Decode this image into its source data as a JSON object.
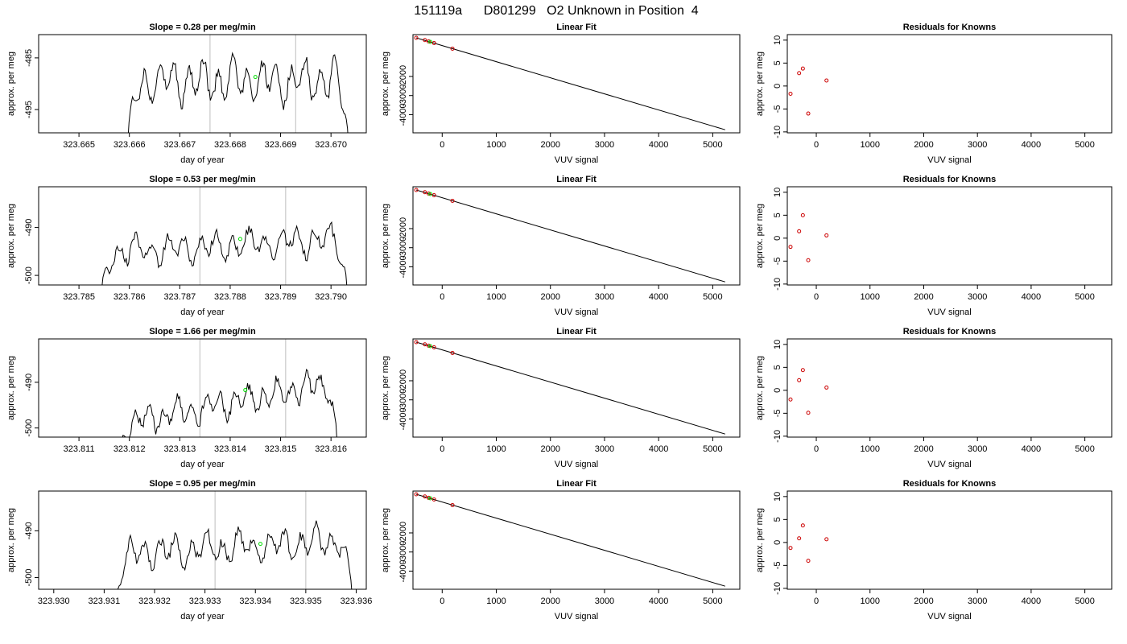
{
  "title": "151119a      D801299   O2 Unknown in Position  4",
  "colors": {
    "trace": "#000000",
    "vline": "#c8c8c8",
    "unknown": "#00dd00",
    "known": "#cc0000",
    "fitline": "#000000"
  },
  "chart_data": [
    {
      "title": "Slope =  0.28  per meg/min",
      "xlabel": "day of year",
      "ylabel": "approx. per meg",
      "left": {
        "type": "line",
        "xlim": [
          323.6642,
          323.6707
        ],
        "ylim": [
          -499.5,
          -480.5
        ],
        "xticks": [
          323.665,
          323.666,
          323.667,
          323.668,
          323.669,
          323.67
        ],
        "xtick_labels": [
          "323.665",
          "323.666",
          "323.667",
          "323.668",
          "323.669",
          "323.670"
        ],
        "yticks": [
          -485,
          -495
        ],
        "ytick_labels": [
          "-485",
          "-495"
        ],
        "vlines": [
          323.6676,
          323.6693
        ],
        "unknown_point": [
          323.6685,
          -488.7
        ],
        "trace": {
          "x0": 323.66597,
          "x1": 323.67035,
          "start": -501,
          "base": -489.5,
          "trend": 0.0,
          "amp": 3.0,
          "amp2": 1.6,
          "phase": 0.4,
          "end": -502
        }
      },
      "fit": {
        "title": "Linear Fit",
        "xlabel": "VUV signal",
        "ylabel": "approx. per meg",
        "xlim": [
          -540,
          5500
        ],
        "ylim": [
          -4950,
          190
        ],
        "xticks": [
          0,
          1000,
          2000,
          3000,
          4000,
          5000
        ],
        "xtick_labels": [
          "0",
          "1000",
          "2000",
          "3000",
          "4000",
          "5000"
        ],
        "yticks": [
          -2000,
          -3000,
          -4000
        ],
        "ytick_labels": [
          "-2000",
          "-3000",
          "-4000"
        ],
        "line": [
          [
            -480,
            20
          ],
          [
            5230,
            -4790
          ]
        ],
        "knowns": [
          [
            -480,
            20
          ],
          [
            -320,
            -95
          ],
          [
            -250,
            -165
          ],
          [
            -150,
            -250
          ],
          [
            190,
            -545
          ]
        ],
        "unknowns": [
          [
            -220,
            -190
          ]
        ]
      },
      "residuals": {
        "title": "Residuals for Knowns",
        "xlabel": "VUV signal",
        "ylabel": "approx. per meg",
        "xlim": [
          -540,
          5500
        ],
        "ylim": [
          -10.2,
          11.2
        ],
        "xticks": [
          0,
          1000,
          2000,
          3000,
          4000,
          5000
        ],
        "xtick_labels": [
          "0",
          "1000",
          "2000",
          "3000",
          "4000",
          "5000"
        ],
        "yticks": [
          -10,
          -5,
          0,
          5,
          10
        ],
        "ytick_labels": [
          "-10",
          "-5",
          "0",
          "5",
          "10"
        ],
        "points": [
          [
            -480,
            -1.7
          ],
          [
            -320,
            2.8
          ],
          [
            -250,
            3.8
          ],
          [
            -150,
            -6.0
          ],
          [
            190,
            1.2
          ]
        ]
      }
    },
    {
      "title": "Slope =  0.53  per meg/min",
      "xlabel": "day of year",
      "ylabel": "approx. per meg",
      "left": {
        "type": "line",
        "xlim": [
          323.7842,
          323.7907
        ],
        "ylim": [
          -502,
          -481.5
        ],
        "xticks": [
          323.785,
          323.786,
          323.787,
          323.788,
          323.789,
          323.79
        ],
        "xtick_labels": [
          "323.785",
          "323.786",
          "323.787",
          "323.788",
          "323.789",
          "323.790"
        ],
        "yticks": [
          -490,
          -500
        ],
        "ytick_labels": [
          "-490",
          "-500"
        ],
        "vlines": [
          323.7874,
          323.7891
        ],
        "unknown_point": [
          323.7882,
          -492.4
        ],
        "trace": {
          "x0": 323.78545,
          "x1": 323.79032,
          "start": -503,
          "base": -493.8,
          "trend": 1.6,
          "amp": 2.2,
          "amp2": 1.2,
          "phase": 1.1,
          "end": -503
        }
      },
      "fit": {
        "title": "Linear Fit",
        "xlabel": "VUV signal",
        "ylabel": "approx. per meg",
        "xlim": [
          -540,
          5500
        ],
        "ylim": [
          -4950,
          190
        ],
        "xticks": [
          0,
          1000,
          2000,
          3000,
          4000,
          5000
        ],
        "xtick_labels": [
          "0",
          "1000",
          "2000",
          "3000",
          "4000",
          "5000"
        ],
        "yticks": [
          -2000,
          -3000,
          -4000
        ],
        "ytick_labels": [
          "-2000",
          "-3000",
          "-4000"
        ],
        "line": [
          [
            -480,
            20
          ],
          [
            5230,
            -4790
          ]
        ],
        "knowns": [
          [
            -480,
            20
          ],
          [
            -320,
            -95
          ],
          [
            -250,
            -165
          ],
          [
            -150,
            -250
          ],
          [
            190,
            -545
          ]
        ],
        "unknowns": [
          [
            -220,
            -190
          ]
        ]
      },
      "residuals": {
        "title": "Residuals for Knowns",
        "xlabel": "VUV signal",
        "ylabel": "approx. per meg",
        "xlim": [
          -540,
          5500
        ],
        "ylim": [
          -10.2,
          11.2
        ],
        "xticks": [
          0,
          1000,
          2000,
          3000,
          4000,
          5000
        ],
        "xtick_labels": [
          "0",
          "1000",
          "2000",
          "3000",
          "4000",
          "5000"
        ],
        "yticks": [
          -10,
          -5,
          0,
          5,
          10
        ],
        "ytick_labels": [
          "-10",
          "-5",
          "0",
          "5",
          "10"
        ],
        "points": [
          [
            -480,
            -1.9
          ],
          [
            -320,
            1.5
          ],
          [
            -250,
            5.0
          ],
          [
            -150,
            -4.8
          ],
          [
            190,
            0.6
          ]
        ]
      }
    },
    {
      "title": "Slope =  1.66  per meg/min",
      "xlabel": "day of year",
      "ylabel": "approx. per meg",
      "left": {
        "type": "line",
        "xlim": [
          323.8102,
          323.8167
        ],
        "ylim": [
          -502,
          -480.5
        ],
        "xticks": [
          323.811,
          323.812,
          323.813,
          323.814,
          323.815,
          323.816
        ],
        "xtick_labels": [
          "323.811",
          "323.812",
          "323.813",
          "323.814",
          "323.815",
          "323.816"
        ],
        "yticks": [
          -490,
          -500
        ],
        "ytick_labels": [
          "-490",
          "-500"
        ],
        "vlines": [
          323.8134,
          323.8151
        ],
        "unknown_point": [
          323.8143,
          -491.7
        ],
        "trace": {
          "x0": 323.81185,
          "x1": 323.81612,
          "start": -503,
          "base": -494.5,
          "trend": 4.5,
          "amp": 2.3,
          "amp2": 1.2,
          "phase": 2.0,
          "end": -503
        }
      },
      "fit": {
        "title": "Linear Fit",
        "xlabel": "VUV signal",
        "ylabel": "approx. per meg",
        "xlim": [
          -540,
          5500
        ],
        "ylim": [
          -4950,
          190
        ],
        "xticks": [
          0,
          1000,
          2000,
          3000,
          4000,
          5000
        ],
        "xtick_labels": [
          "0",
          "1000",
          "2000",
          "3000",
          "4000",
          "5000"
        ],
        "yticks": [
          -2000,
          -3000,
          -4000
        ],
        "ytick_labels": [
          "-2000",
          "-3000",
          "-4000"
        ],
        "line": [
          [
            -480,
            20
          ],
          [
            5230,
            -4790
          ]
        ],
        "knowns": [
          [
            -480,
            20
          ],
          [
            -320,
            -95
          ],
          [
            -250,
            -165
          ],
          [
            -150,
            -250
          ],
          [
            190,
            -545
          ]
        ],
        "unknowns": [
          [
            -220,
            -190
          ]
        ]
      },
      "residuals": {
        "title": "Residuals for Knowns",
        "xlabel": "VUV signal",
        "ylabel": "approx. per meg",
        "xlim": [
          -540,
          5500
        ],
        "ylim": [
          -10.2,
          11.2
        ],
        "xticks": [
          0,
          1000,
          2000,
          3000,
          4000,
          5000
        ],
        "xtick_labels": [
          "0",
          "1000",
          "2000",
          "3000",
          "4000",
          "5000"
        ],
        "yticks": [
          -10,
          -5,
          0,
          5,
          10
        ],
        "ytick_labels": [
          "-10",
          "-5",
          "0",
          "5",
          "10"
        ],
        "points": [
          [
            -480,
            -2.0
          ],
          [
            -320,
            2.2
          ],
          [
            -250,
            4.4
          ],
          [
            -150,
            -4.9
          ],
          [
            190,
            0.6
          ]
        ]
      }
    },
    {
      "title": "Slope =  0.95  per meg/min",
      "xlabel": "day of year",
      "ylabel": "approx. per meg",
      "left": {
        "type": "line",
        "xlim": [
          323.9297,
          323.9362
        ],
        "ylim": [
          -502.5,
          -481.5
        ],
        "xticks": [
          323.93,
          323.931,
          323.932,
          323.933,
          323.934,
          323.935,
          323.936
        ],
        "xtick_labels": [
          "323.930",
          "323.931",
          "323.932",
          "323.933",
          "323.934",
          "323.935",
          "323.936"
        ],
        "yticks": [
          -490,
          -500
        ],
        "ytick_labels": [
          "-490",
          "-500"
        ],
        "vlines": [
          323.9332,
          323.935
        ],
        "unknown_point": [
          323.9341,
          -492.8
        ],
        "trace": {
          "x0": 323.93125,
          "x1": 323.93592,
          "start": -504,
          "base": -493.5,
          "trend": 1.5,
          "amp": 2.4,
          "amp2": 1.3,
          "phase": 2.9,
          "end": -504
        }
      },
      "fit": {
        "title": "Linear Fit",
        "xlabel": "VUV signal",
        "ylabel": "approx. per meg",
        "xlim": [
          -540,
          5500
        ],
        "ylim": [
          -4950,
          190
        ],
        "xticks": [
          0,
          1000,
          2000,
          3000,
          4000,
          5000
        ],
        "xtick_labels": [
          "0",
          "1000",
          "2000",
          "3000",
          "4000",
          "5000"
        ],
        "yticks": [
          -2000,
          -3000,
          -4000
        ],
        "ytick_labels": [
          "-2000",
          "-3000",
          "-4000"
        ],
        "line": [
          [
            -480,
            20
          ],
          [
            5230,
            -4790
          ]
        ],
        "knowns": [
          [
            -480,
            20
          ],
          [
            -320,
            -95
          ],
          [
            -250,
            -165
          ],
          [
            -150,
            -250
          ],
          [
            190,
            -545
          ]
        ],
        "unknowns": [
          [
            -220,
            -190
          ]
        ]
      },
      "residuals": {
        "title": "Residuals for Knowns",
        "xlabel": "VUV signal",
        "ylabel": "approx. per meg",
        "xlim": [
          -540,
          5500
        ],
        "ylim": [
          -10.2,
          11.2
        ],
        "xticks": [
          0,
          1000,
          2000,
          3000,
          4000,
          5000
        ],
        "xtick_labels": [
          "0",
          "1000",
          "2000",
          "3000",
          "4000",
          "5000"
        ],
        "yticks": [
          -10,
          -5,
          0,
          5,
          10
        ],
        "ytick_labels": [
          "-10",
          "-5",
          "0",
          "5",
          "10"
        ],
        "points": [
          [
            -480,
            -1.2
          ],
          [
            -320,
            0.9
          ],
          [
            -250,
            3.7
          ],
          [
            -150,
            -4.0
          ],
          [
            190,
            0.7
          ]
        ]
      }
    }
  ]
}
